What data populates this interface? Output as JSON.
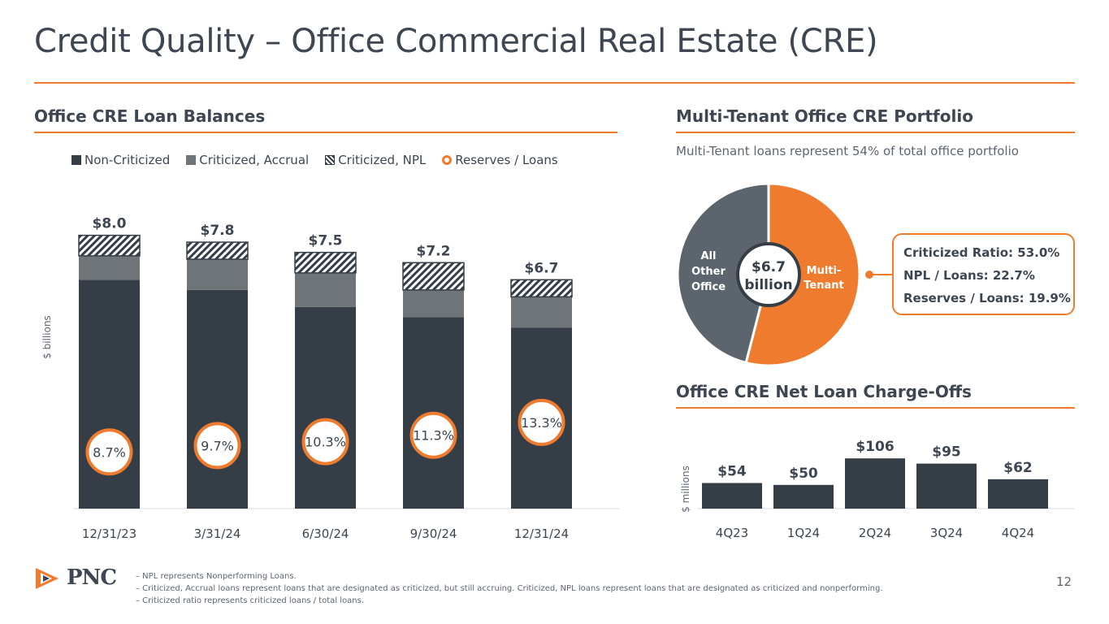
{
  "slide": {
    "title": "Credit Quality – Office Commercial Real Estate (CRE)",
    "page_number": "12",
    "logo_text": "PNC",
    "footnotes": [
      "– NPL represents Nonperforming Loans.",
      "– Criticized, Accrual loans represent loans that are designated as criticized, but still accruing. Criticized, NPL loans represent loans that are designated as criticized and nonperforming.",
      "– Criticized ratio represents criticized loans / total loans."
    ]
  },
  "left_panel": {
    "title": "Office CRE Loan Balances",
    "legend": [
      "Non-Criticized",
      "Criticized, Accrual",
      "Criticized, NPL",
      "Reserves / Loans"
    ]
  },
  "right_top": {
    "title": "Multi-Tenant Office CRE Portfolio",
    "subtitle": "Multi-Tenant loans represent 54% of total office portfolio",
    "callout": [
      "Criticized Ratio: 53.0%",
      "NPL / Loans: 22.7%",
      "Reserves / Loans: 19.9%"
    ]
  },
  "right_bottom": {
    "title": "Office CRE Net Loan Charge-Offs"
  },
  "colors": {
    "accent": "#ef7b2e",
    "dark": "#353e47",
    "mid": "#6f7479",
    "pie_other": "#5c656d"
  },
  "chart_data": [
    {
      "type": "bar",
      "stacked": true,
      "categories": [
        "12/31/23",
        "3/31/24",
        "6/30/24",
        "9/30/24",
        "12/31/24"
      ],
      "ylabel": "$ billions",
      "ylim": [
        0,
        8.8
      ],
      "totals": [
        8.0,
        7.8,
        7.5,
        7.2,
        6.7
      ],
      "total_labels": [
        "$8.0",
        "$7.8",
        "$7.5",
        "$7.2",
        "$6.7"
      ],
      "series": [
        {
          "name": "Non-Criticized",
          "values": [
            6.7,
            6.4,
            5.9,
            5.6,
            5.3
          ]
        },
        {
          "name": "Criticized, Accrual",
          "values": [
            0.7,
            0.9,
            1.0,
            0.8,
            0.9
          ]
        },
        {
          "name": "Criticized, NPL",
          "values": [
            0.6,
            0.5,
            0.6,
            0.8,
            0.5
          ]
        }
      ],
      "overlay": {
        "name": "Reserves / Loans",
        "values": [
          8.7,
          9.7,
          10.3,
          11.3,
          13.3
        ],
        "labels": [
          "8.7%",
          "9.7%",
          "10.3%",
          "11.3%",
          "13.3%"
        ]
      }
    },
    {
      "type": "pie",
      "slices": [
        {
          "label": "Multi-Tenant",
          "value": 54
        },
        {
          "label": "All Other Office",
          "value": 46
        }
      ],
      "center_label": [
        "$6.7",
        "billion"
      ]
    },
    {
      "type": "bar",
      "categories": [
        "4Q23",
        "1Q24",
        "2Q24",
        "3Q24",
        "4Q24"
      ],
      "values": [
        54,
        50,
        106,
        95,
        62
      ],
      "value_labels": [
        "$54",
        "$50",
        "$106",
        "$95",
        "$62"
      ],
      "ylabel": "$ millions",
      "ylim": [
        0,
        120
      ]
    }
  ]
}
